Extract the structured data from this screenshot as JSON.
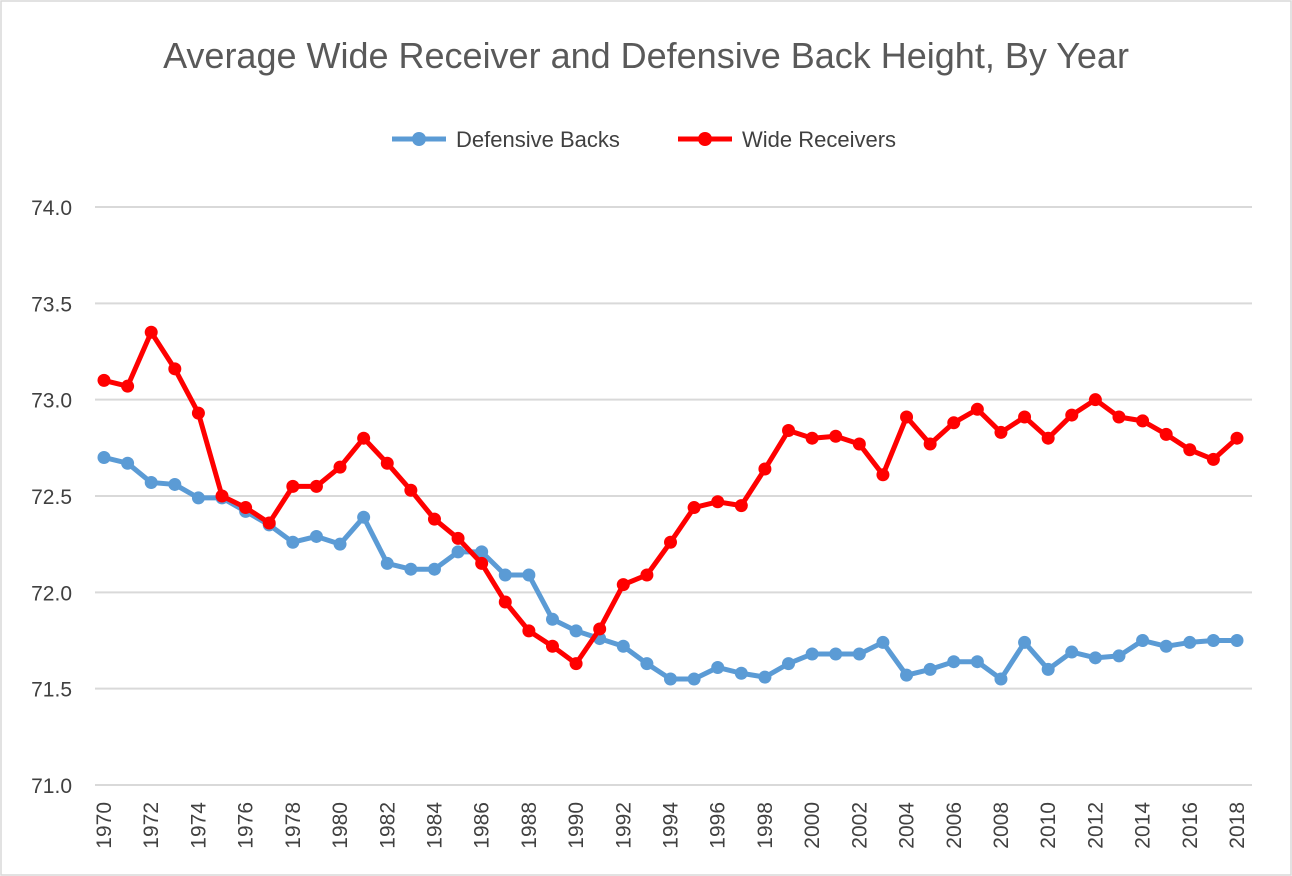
{
  "chart_data": {
    "type": "line",
    "title": "Average Wide Receiver and Defensive Back Height, By Year",
    "xlabel": "",
    "ylabel": "",
    "ylim": [
      71.0,
      74.0
    ],
    "y_ticks": [
      "71.0",
      "71.5",
      "72.0",
      "72.5",
      "73.0",
      "73.5",
      "74.0"
    ],
    "grid": true,
    "legend_position": "top",
    "x": [
      1970,
      1971,
      1972,
      1973,
      1974,
      1975,
      1976,
      1977,
      1978,
      1979,
      1980,
      1981,
      1982,
      1983,
      1984,
      1985,
      1986,
      1987,
      1988,
      1989,
      1990,
      1991,
      1992,
      1993,
      1994,
      1995,
      1996,
      1997,
      1998,
      1999,
      2000,
      2001,
      2002,
      2003,
      2004,
      2005,
      2006,
      2007,
      2008,
      2009,
      2010,
      2011,
      2012,
      2013,
      2014,
      2015,
      2016,
      2017,
      2018
    ],
    "x_tick_labels": [
      "1970",
      "1972",
      "1974",
      "1976",
      "1978",
      "1980",
      "1982",
      "1984",
      "1986",
      "1988",
      "1990",
      "1992",
      "1994",
      "1996",
      "1998",
      "2000",
      "2002",
      "2004",
      "2006",
      "2008",
      "2010",
      "2012",
      "2014",
      "2016",
      "2018"
    ],
    "series": [
      {
        "name": "Defensive Backs",
        "color": "#5b9bd5",
        "values": [
          72.7,
          72.67,
          72.57,
          72.56,
          72.49,
          72.49,
          72.42,
          72.35,
          72.26,
          72.29,
          72.25,
          72.39,
          72.15,
          72.12,
          72.12,
          72.21,
          72.21,
          72.09,
          72.09,
          71.86,
          71.8,
          71.76,
          71.72,
          71.63,
          71.55,
          71.55,
          71.61,
          71.58,
          71.56,
          71.63,
          71.68,
          71.68,
          71.68,
          71.74,
          71.57,
          71.6,
          71.64,
          71.64,
          71.55,
          71.74,
          71.6,
          71.69,
          71.66,
          71.67,
          71.75,
          71.72,
          71.74,
          71.75,
          71.75
        ]
      },
      {
        "name": "Wide Receivers",
        "color": "#ff0000",
        "values": [
          73.1,
          73.07,
          73.35,
          73.16,
          72.93,
          72.5,
          72.44,
          72.36,
          72.55,
          72.55,
          72.65,
          72.8,
          72.67,
          72.53,
          72.38,
          72.28,
          72.15,
          71.95,
          71.8,
          71.72,
          71.63,
          71.81,
          72.04,
          72.09,
          72.26,
          72.44,
          72.47,
          72.45,
          72.64,
          72.84,
          72.8,
          72.81,
          72.77,
          72.61,
          72.91,
          72.77,
          72.88,
          72.95,
          72.83,
          72.91,
          72.8,
          72.92,
          73.0,
          72.91,
          72.89,
          72.82,
          72.74,
          72.69,
          72.8
        ]
      }
    ]
  }
}
